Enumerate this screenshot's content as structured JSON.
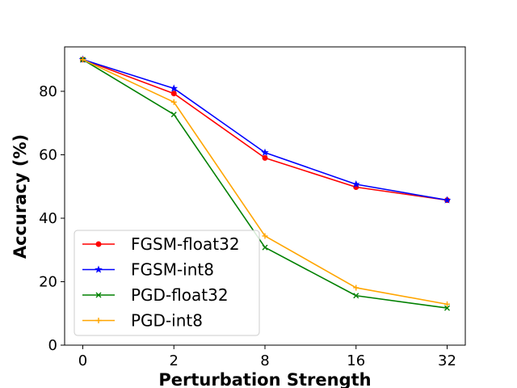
{
  "chart_data": {
    "type": "line",
    "title": "",
    "xlabel": "Perturbation Strength",
    "ylabel": "Accuracy (%)",
    "categories": [
      "0",
      "2",
      "8",
      "16",
      "32"
    ],
    "ylim": [
      0,
      94
    ],
    "yticks": [
      0,
      20,
      40,
      60,
      80
    ],
    "grid": false,
    "legend_position": "bottom-left",
    "series": [
      {
        "name": "FGSM-float32",
        "color": "#ff0000",
        "marker": "circle",
        "values": [
          90.0,
          79.3,
          59.0,
          49.8,
          45.7
        ]
      },
      {
        "name": "FGSM-int8",
        "color": "#0000ff",
        "marker": "star",
        "values": [
          90.0,
          80.9,
          60.7,
          50.7,
          45.7
        ]
      },
      {
        "name": "PGD-float32",
        "color": "#008000",
        "marker": "x",
        "values": [
          90.0,
          72.7,
          30.8,
          15.6,
          11.7
        ]
      },
      {
        "name": "PGD-int8",
        "color": "#ffa500",
        "marker": "plus",
        "values": [
          90.0,
          76.6,
          34.4,
          18.1,
          12.9
        ]
      }
    ]
  }
}
